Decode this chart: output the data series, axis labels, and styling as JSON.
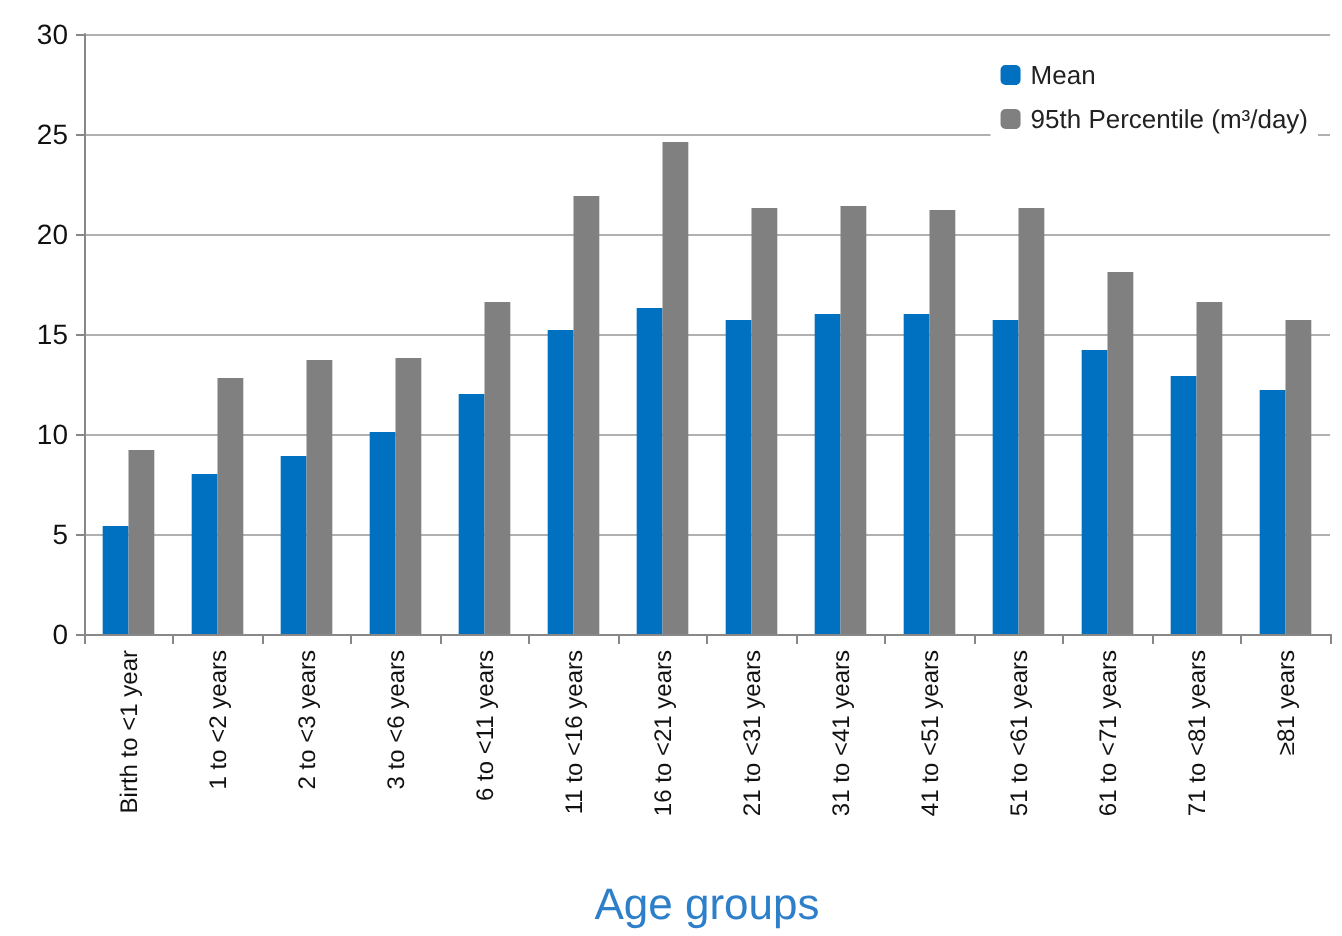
{
  "chart_data": {
    "type": "bar",
    "xlabel": "Age groups",
    "categories": [
      "Birth to <1 year",
      "1 to <2 years",
      "2 to <3 years",
      "3 to <6 years",
      "6 to <11 years",
      "11 to <16 years",
      "16 to <21 years",
      "21 to <31 years",
      "31 to <41 years",
      "41 to <51 years",
      "51 to <61 years",
      "61 to <71 years",
      "71 to <81 years",
      "≥81 years"
    ],
    "series": [
      {
        "name": "Mean",
        "color": "#0070c0",
        "values": [
          5.4,
          8.0,
          8.9,
          10.1,
          12.0,
          15.2,
          16.3,
          15.7,
          16.0,
          16.0,
          15.7,
          14.2,
          12.9,
          12.2
        ]
      },
      {
        "name": "95th Percentile (m³/day)",
        "color": "#808080",
        "values": [
          9.2,
          12.8,
          13.7,
          13.8,
          16.6,
          21.9,
          24.6,
          21.3,
          21.4,
          21.2,
          21.3,
          18.1,
          16.6,
          15.7
        ]
      }
    ],
    "ylim": [
      0,
      30
    ],
    "yticks": [
      0,
      5,
      10,
      15,
      20,
      25,
      30
    ],
    "grid": "y",
    "legend": "top right"
  }
}
